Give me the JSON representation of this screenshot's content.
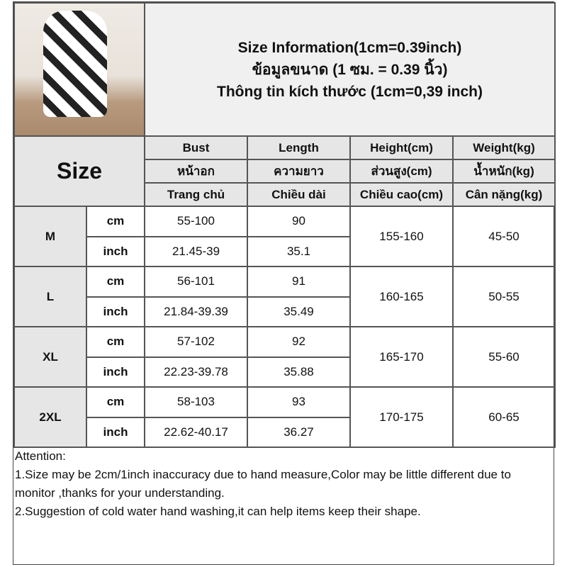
{
  "title": {
    "line1": "Size Information(1cm=0.39inch)",
    "line2": "ข้อมูลขนาด (1 ซม. = 0.39 นิ้ว)",
    "line3": "Thông tin kích thước (1cm=0,39 inch)"
  },
  "size_label": "Size",
  "columns": [
    {
      "en": "Bust",
      "th": "หน้าอก",
      "vi": "Trang chủ"
    },
    {
      "en": "Length",
      "th": "ความยาว",
      "vi": "Chiều dài"
    },
    {
      "en": "Height(cm)",
      "th": "ส่วนสูง(cm)",
      "vi": "Chiều cao(cm)"
    },
    {
      "en": "Weight(kg)",
      "th": "น้ำหนัก(kg)",
      "vi": "Cân nặng(kg)"
    }
  ],
  "unit_cm": "cm",
  "unit_inch": "inch",
  "sizes": [
    {
      "size": "M",
      "bust_cm": "55-100",
      "length_cm": "90",
      "bust_inch": "21.45-39",
      "length_inch": "35.1",
      "height": "155-160",
      "weight": "45-50"
    },
    {
      "size": "L",
      "bust_cm": "56-101",
      "length_cm": "91",
      "bust_inch": "21.84-39.39",
      "length_inch": "35.49",
      "height": "160-165",
      "weight": "50-55"
    },
    {
      "size": "XL",
      "bust_cm": "57-102",
      "length_cm": "92",
      "bust_inch": "22.23-39.78",
      "length_inch": "35.88",
      "height": "165-170",
      "weight": "55-60"
    },
    {
      "size": "2XL",
      "bust_cm": "58-103",
      "length_cm": "93",
      "bust_inch": "22.62-40.17",
      "length_inch": "36.27",
      "height": "170-175",
      "weight": "60-65"
    }
  ],
  "attention": {
    "heading": "Attention:",
    "note1": "1.Size may be 2cm/1inch inaccuracy due to hand measure,Color may be little different due to monitor ,thanks for your understanding.",
    "note2": "2.Suggestion of cold water hand washing,it can help items keep their shape."
  }
}
